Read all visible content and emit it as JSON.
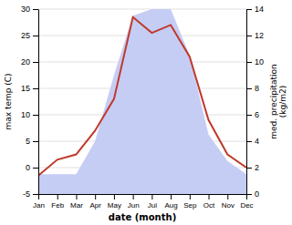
{
  "chart_data": {
    "type": "line",
    "x_label": "date (month)",
    "y_label": "max temp (C)",
    "y2_label": "med. precipitation\n(kg/m2)",
    "categories": [
      "Jan",
      "Feb",
      "Mar",
      "Apr",
      "May",
      "Jun",
      "Jul",
      "Aug",
      "Sep",
      "Oct",
      "Nov",
      "Dec"
    ],
    "series": [
      {
        "type": "area",
        "axis": "y2",
        "color": "#c5cdf5",
        "values": [
          1.5,
          1.5,
          1.5,
          4,
          9,
          13.5,
          14,
          14,
          10.5,
          4.5,
          2.5,
          1.5
        ]
      },
      {
        "type": "line",
        "color": "#c0392b",
        "values": [
          -1.5,
          1.5,
          2.5,
          7,
          13,
          28.5,
          25.5,
          27,
          21,
          9,
          2.5,
          0
        ]
      }
    ],
    "ylim": [
      -5,
      30
    ],
    "yticks": [
      -5,
      0,
      5,
      10,
      15,
      20,
      25,
      30
    ],
    "y2lim": [
      0,
      14
    ],
    "y2ticks": [
      0,
      2,
      4,
      6,
      8,
      10,
      12,
      14
    ],
    "grid": true
  }
}
